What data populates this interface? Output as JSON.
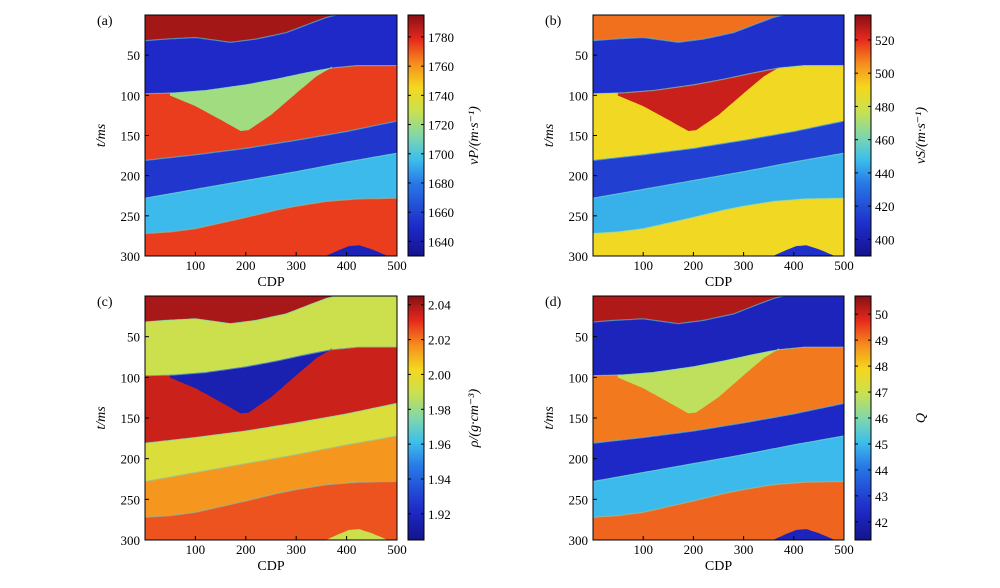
{
  "chart_data": [
    {
      "panel": "(a)",
      "type": "heatmap",
      "xlabel": "CDP",
      "ylabel": "t/ms",
      "xticks": [
        100,
        200,
        300,
        400,
        500
      ],
      "yticks": [
        50,
        100,
        150,
        200,
        250,
        300
      ],
      "xlim": [
        0,
        500
      ],
      "ylim": [
        0,
        300
      ],
      "colorbar": {
        "label": "vP/(m·s⁻¹)",
        "ticks": [
          1640,
          1660,
          1680,
          1700,
          1720,
          1740,
          1760,
          1780
        ],
        "range": [
          1630,
          1795
        ]
      },
      "layers": [
        {
          "name": "layer1",
          "value": 1790
        },
        {
          "name": "layer2",
          "value": 1650
        },
        {
          "name": "wedge",
          "value": 1720
        },
        {
          "name": "layer3",
          "value": 1775
        },
        {
          "name": "layer4",
          "value": 1655
        },
        {
          "name": "layer5",
          "value": 1695
        },
        {
          "name": "layer6",
          "value": 1775
        },
        {
          "name": "bottom",
          "value": 1645
        }
      ]
    },
    {
      "panel": "(b)",
      "type": "heatmap",
      "xlabel": "CDP",
      "ylabel": "t/ms",
      "xticks": [
        100,
        200,
        300,
        400,
        500
      ],
      "yticks": [
        50,
        100,
        150,
        200,
        250,
        300
      ],
      "xlim": [
        0,
        500
      ],
      "ylim": [
        0,
        300
      ],
      "colorbar": {
        "label": "vS/(m·s⁻¹)",
        "ticks": [
          400,
          420,
          440,
          460,
          480,
          500,
          520
        ],
        "range": [
          390,
          535
        ]
      },
      "layers": [
        {
          "name": "layer1",
          "value": 510
        },
        {
          "name": "layer2",
          "value": 410
        },
        {
          "name": "wedge",
          "value": 525
        },
        {
          "name": "layer3",
          "value": 490
        },
        {
          "name": "layer4",
          "value": 415
        },
        {
          "name": "layer5",
          "value": 445
        },
        {
          "name": "layer6",
          "value": 490
        },
        {
          "name": "bottom",
          "value": 410
        }
      ]
    },
    {
      "panel": "(c)",
      "type": "heatmap",
      "xlabel": "CDP",
      "ylabel": "t/ms",
      "xticks": [
        100,
        200,
        300,
        400,
        500
      ],
      "yticks": [
        50,
        100,
        150,
        200,
        250,
        300
      ],
      "xlim": [
        0,
        500
      ],
      "ylim": [
        0,
        300
      ],
      "colorbar": {
        "label": "ρ/(g·cm⁻³)",
        "ticks": [
          1.92,
          1.94,
          1.96,
          1.98,
          2.0,
          2.02,
          2.04
        ],
        "range": [
          1.905,
          2.045
        ]
      },
      "layers": [
        {
          "name": "layer1",
          "value": 2.04
        },
        {
          "name": "layer2",
          "value": 1.99
        },
        {
          "name": "wedge",
          "value": 1.915
        },
        {
          "name": "layer3",
          "value": 2.035
        },
        {
          "name": "layer4",
          "value": 1.995
        },
        {
          "name": "layer5",
          "value": 2.015
        },
        {
          "name": "layer6",
          "value": 2.025
        },
        {
          "name": "bottom",
          "value": 1.99
        }
      ]
    },
    {
      "panel": "(d)",
      "type": "heatmap",
      "xlabel": "CDP",
      "ylabel": "t/ms",
      "xticks": [
        100,
        200,
        300,
        400,
        500
      ],
      "yticks": [
        50,
        100,
        150,
        200,
        250,
        300
      ],
      "xlim": [
        0,
        500
      ],
      "ylim": [
        0,
        300
      ],
      "colorbar": {
        "label": "Q",
        "ticks": [
          42,
          43,
          44,
          45,
          46,
          47,
          48,
          49,
          50
        ],
        "range": [
          41.3,
          50.7
        ]
      },
      "layers": [
        {
          "name": "layer1",
          "value": 50.3
        },
        {
          "name": "layer2",
          "value": 42.2
        },
        {
          "name": "wedge",
          "value": 46.8
        },
        {
          "name": "layer3",
          "value": 49.0
        },
        {
          "name": "layer4",
          "value": 42.4
        },
        {
          "name": "layer5",
          "value": 45.0
        },
        {
          "name": "layer6",
          "value": 49.2
        },
        {
          "name": "bottom",
          "value": 42.2
        }
      ]
    }
  ]
}
